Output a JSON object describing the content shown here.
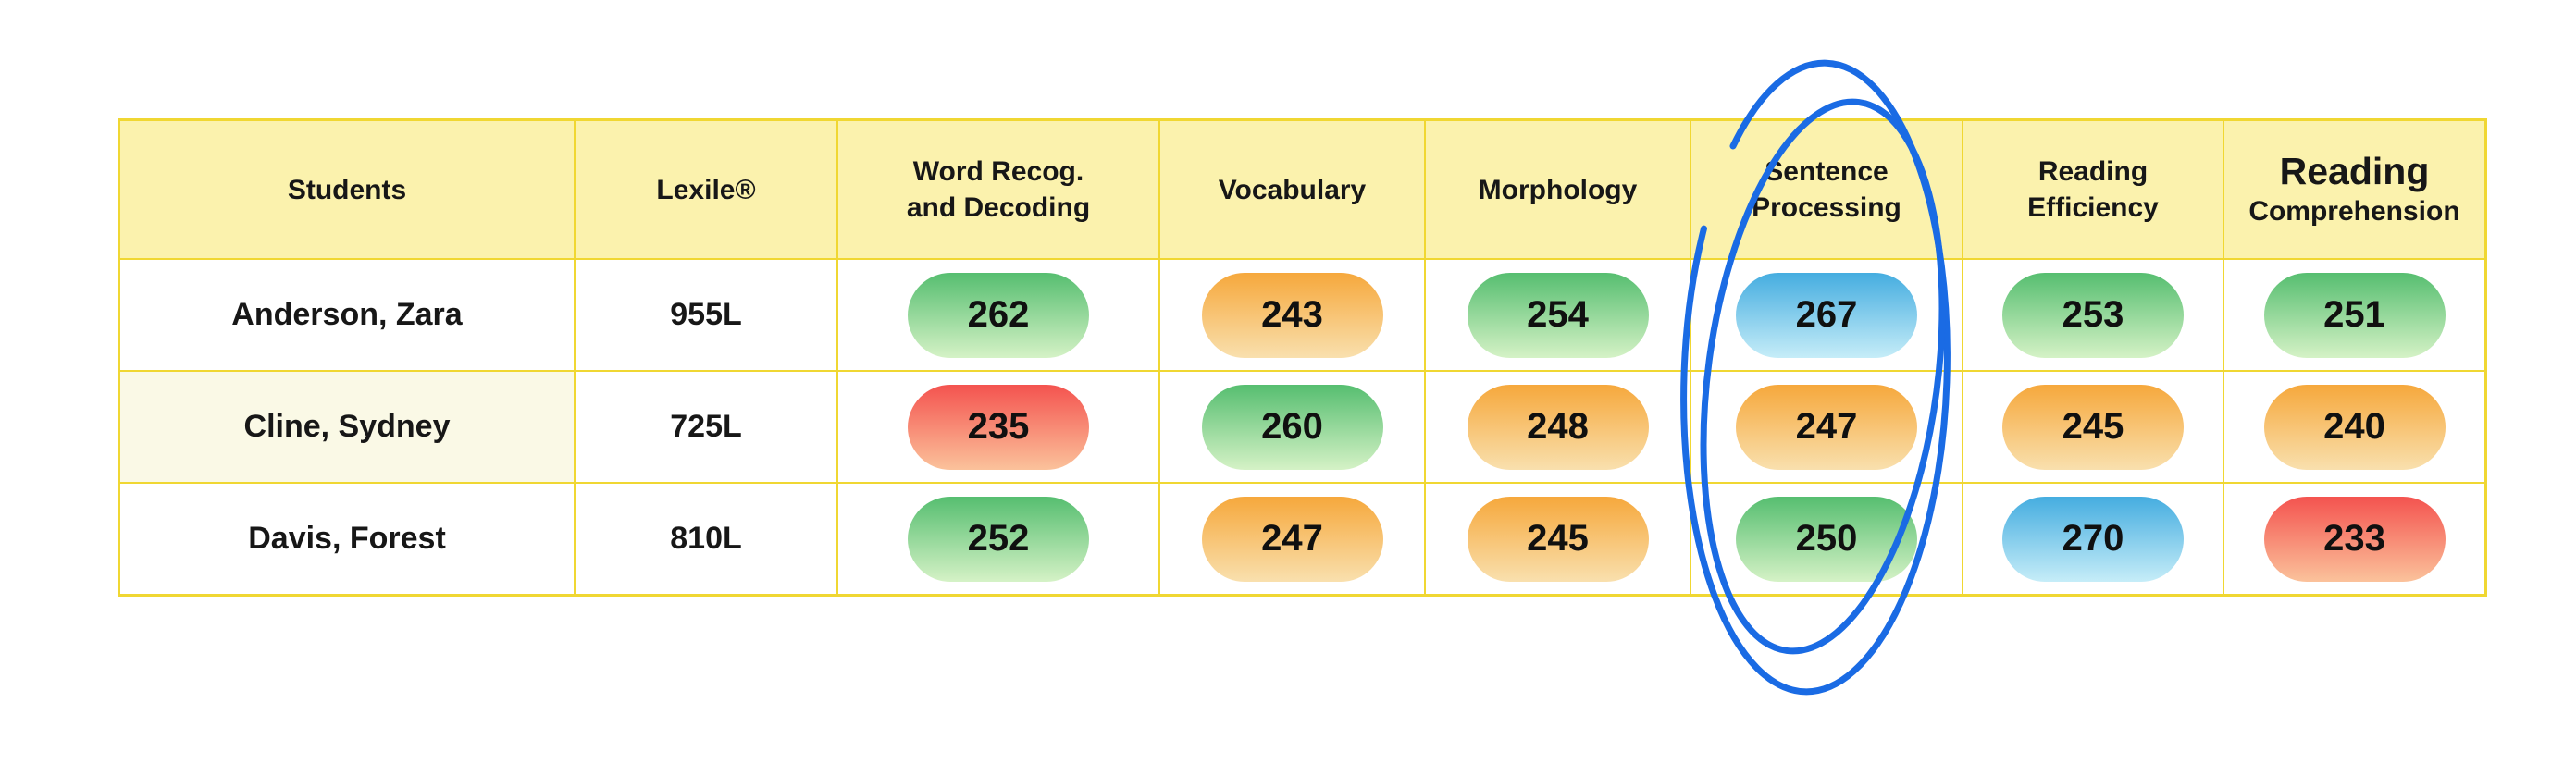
{
  "chart_data": {
    "type": "table",
    "title": "Student reading assessment scores",
    "columns": [
      "Students",
      "Lexile®",
      "Word Recog. and Decoding",
      "Vocabulary",
      "Morphology",
      "Sentence Processing",
      "Reading Efficiency",
      "Reading Comprehension"
    ],
    "rows": [
      [
        "Anderson, Zara",
        "955L",
        262,
        243,
        254,
        267,
        253,
        251
      ],
      [
        "Cline, Sydney",
        "725L",
        235,
        260,
        248,
        247,
        245,
        240
      ],
      [
        "Davis, Forest",
        "810L",
        252,
        247,
        245,
        250,
        270,
        233
      ]
    ],
    "cell_color_levels": [
      [
        "green",
        "orange",
        "green",
        "blue",
        "green",
        "green"
      ],
      [
        "red",
        "green",
        "orange",
        "orange",
        "orange",
        "orange"
      ],
      [
        "orange",
        "orange",
        "orange",
        "green",
        "blue",
        "red"
      ]
    ],
    "annotation": "Sentence Processing column circled with a hand-drawn blue double ellipse"
  },
  "table": {
    "columns": [
      {
        "id": "students",
        "lines": [
          "Students"
        ]
      },
      {
        "id": "lexile",
        "lines": [
          "Lexile®"
        ]
      },
      {
        "id": "word-recog-decoding",
        "lines": [
          "Word Recog.",
          "and Decoding"
        ]
      },
      {
        "id": "vocabulary",
        "lines": [
          "Vocabulary"
        ]
      },
      {
        "id": "morphology",
        "lines": [
          "Morphology"
        ]
      },
      {
        "id": "sentence-processing",
        "lines": [
          "Sentence",
          "Processing"
        ]
      },
      {
        "id": "reading-efficiency",
        "lines": [
          "Reading",
          "Efficiency"
        ]
      },
      {
        "id": "reading-comprehension",
        "lines": [
          "Reading",
          "Comprehension"
        ],
        "emphasis": "first-line-large"
      }
    ],
    "rows": [
      {
        "student": "Anderson, Zara",
        "lexile": "955L",
        "scores": [
          {
            "value": "262",
            "level": "green"
          },
          {
            "value": "243",
            "level": "orange"
          },
          {
            "value": "254",
            "level": "green"
          },
          {
            "value": "267",
            "level": "blue"
          },
          {
            "value": "253",
            "level": "green"
          },
          {
            "value": "251",
            "level": "green"
          }
        ]
      },
      {
        "student": "Cline, Sydney",
        "lexile": "725L",
        "name_cell_bg": "#FAF9E6",
        "scores": [
          {
            "value": "235",
            "level": "red"
          },
          {
            "value": "260",
            "level": "green"
          },
          {
            "value": "248",
            "level": "orange"
          },
          {
            "value": "247",
            "level": "orange"
          },
          {
            "value": "245",
            "level": "orange"
          },
          {
            "value": "240",
            "level": "orange"
          }
        ]
      },
      {
        "student": "Davis, Forest",
        "lexile": "810L",
        "scores": [
          {
            "value": "252",
            "level": "green"
          },
          {
            "value": "247",
            "level": "orange"
          },
          {
            "value": "245",
            "level": "orange"
          },
          {
            "value": "250",
            "level": "green"
          },
          {
            "value": "270",
            "level": "blue"
          },
          {
            "value": "233",
            "level": "red"
          }
        ]
      }
    ]
  },
  "score_levels": {
    "green": {
      "top": "#56BE70",
      "bottom": "#D5F2C6"
    },
    "orange": {
      "top": "#F6A83C",
      "bottom": "#F9E0AE"
    },
    "red": {
      "top": "#F4534F",
      "bottom": "#FBC29B"
    },
    "blue": {
      "top": "#45ADE0",
      "bottom": "#C6EDF8"
    }
  },
  "annotation": {
    "shape": "hand-drawn-double-ellipse",
    "highlighted_column": "Sentence Processing",
    "color": "#1A6BE4"
  },
  "theme": {
    "table_border": "#F0D732",
    "header_bg": "#FBF2AD",
    "cell_bg": "#FFFFFF",
    "text": "#171717",
    "page_bg": "#FFFFFF"
  }
}
